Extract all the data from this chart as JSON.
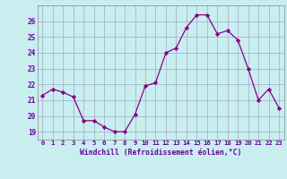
{
  "x": [
    0,
    1,
    2,
    3,
    4,
    5,
    6,
    7,
    8,
    9,
    10,
    11,
    12,
    13,
    14,
    15,
    16,
    17,
    18,
    19,
    20,
    21,
    22,
    23
  ],
  "y": [
    21.3,
    21.7,
    21.5,
    21.2,
    19.7,
    19.7,
    19.3,
    19.0,
    19.0,
    20.1,
    21.9,
    22.1,
    24.0,
    24.3,
    25.6,
    26.4,
    26.4,
    25.2,
    25.4,
    24.8,
    23.0,
    21.0,
    21.7,
    20.5
  ],
  "line_color": "#880088",
  "marker_color": "#880088",
  "bg_color": "#c8eef0",
  "grid_color": "#9999bb",
  "xlabel": "Windchill (Refroidissement éolien,°C)",
  "ylabel_ticks": [
    19,
    20,
    21,
    22,
    23,
    24,
    25,
    26
  ],
  "xlim": [
    -0.5,
    23.5
  ],
  "ylim": [
    18.5,
    27.0
  ],
  "xlabel_color": "#660099",
  "tick_color": "#660099",
  "font": "monospace",
  "tick_fontsize": 5.2,
  "xlabel_fontsize": 5.8
}
